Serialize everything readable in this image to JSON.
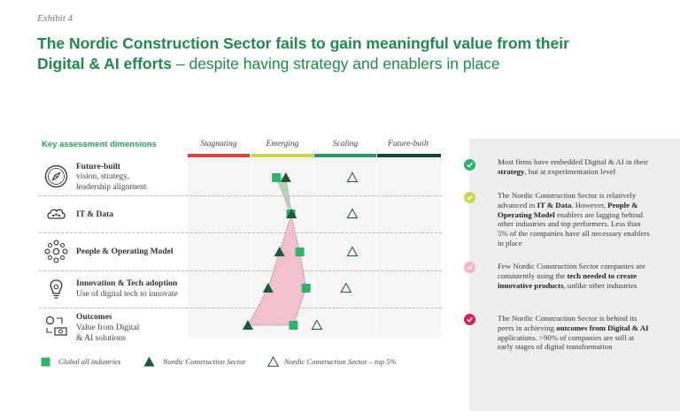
{
  "exhibit_label": "Exhibit 4",
  "headline": {
    "bold_1": "The Nordic Construction Sector fails to  gain meaningful value from their",
    "bold_2": "Digital & AI efforts",
    "rest": " – despite having strategy and enablers in place"
  },
  "dims_header": "Key assessment dimensions",
  "colors": {
    "stagnating": "#d94545",
    "emerging": "#c9d94a",
    "scaling": "#2e9a63",
    "future_built": "#174a2c",
    "green_marker": "#2fb46c",
    "dark_marker": "#1c5a35",
    "area_fill": "#f2c1cd",
    "panel_bg": "#eeeeee"
  },
  "dimensions": [
    {
      "title": "Future-built",
      "subtitle": "vision, strategy,\nleadership alignment",
      "icon": "compass-icon"
    },
    {
      "title": "IT & Data",
      "subtitle": "",
      "icon": "cloud-icon"
    },
    {
      "title": "People & Operating Model",
      "subtitle": "",
      "icon": "people-network-icon"
    },
    {
      "title": "Innovation & Tech adoption",
      "subtitle": "Use of digital tech to innovate",
      "icon": "lightbulb-icon"
    },
    {
      "title": "Outcomes",
      "subtitle": "Value from Digital\n& AI solutions",
      "icon": "money-cycle-icon"
    }
  ],
  "chart_data": {
    "type": "scatter",
    "title": "",
    "x_categories": [
      "Stagnating",
      "Emerging",
      "Scaling",
      "Future-built"
    ],
    "y_categories": [
      "Future-built",
      "IT & Data",
      "People & Operating Model",
      "Innovation & Tech adoption",
      "Outcomes"
    ],
    "xlim": [
      0,
      4
    ],
    "series": [
      {
        "name": "Global all industries",
        "marker": "square",
        "values": [
          1.4,
          1.63,
          1.77,
          1.87,
          1.67
        ]
      },
      {
        "name": "Nordic Construction Sector",
        "marker": "triangle",
        "values": [
          1.55,
          1.64,
          1.45,
          1.27,
          0.95
        ]
      },
      {
        "name": "Nordic Construction Sector – top 5%",
        "marker": "triangle-outline",
        "values": [
          2.6,
          2.6,
          2.6,
          2.5,
          2.04
        ]
      }
    ],
    "legend_position": "bottom"
  },
  "legend": {
    "global": "Global all industries",
    "ncs": "Nordic Construction Sector",
    "top5": "Nordic Construction Sector – top 5%"
  },
  "panel": [
    {
      "color": "#2fb46c",
      "pre": "Most firms have embedded Digital & AI in their ",
      "bold": "strategy",
      "post": ", but at experimentation level",
      "bold2": "",
      "post2": ""
    },
    {
      "color": "#c9d94a",
      "pre": "The Nordic Construction Sector is relatively advanced in ",
      "bold": "IT & Data",
      "post": ". However, ",
      "bold2": "People & Operating Model",
      "post2": " enablers are lagging behind other industries and top performers. Less than 5% of the companies have all necessary enablers in place"
    },
    {
      "color": "#f2b6c6",
      "pre": "Few Nordic Construction Sector companies are consistently using the ",
      "bold": "tech needed to create innovative products",
      "post": ", unlike other industries",
      "bold2": "",
      "post2": ""
    },
    {
      "color": "#d8245a",
      "pre": "The Nordic Construction Sector is behind its peers in achieving ",
      "bold": "outcomes from Digital & AI",
      "post": " applications. >90% of companies are still at early stages of digital transformation",
      "bold2": "",
      "post2": ""
    }
  ]
}
